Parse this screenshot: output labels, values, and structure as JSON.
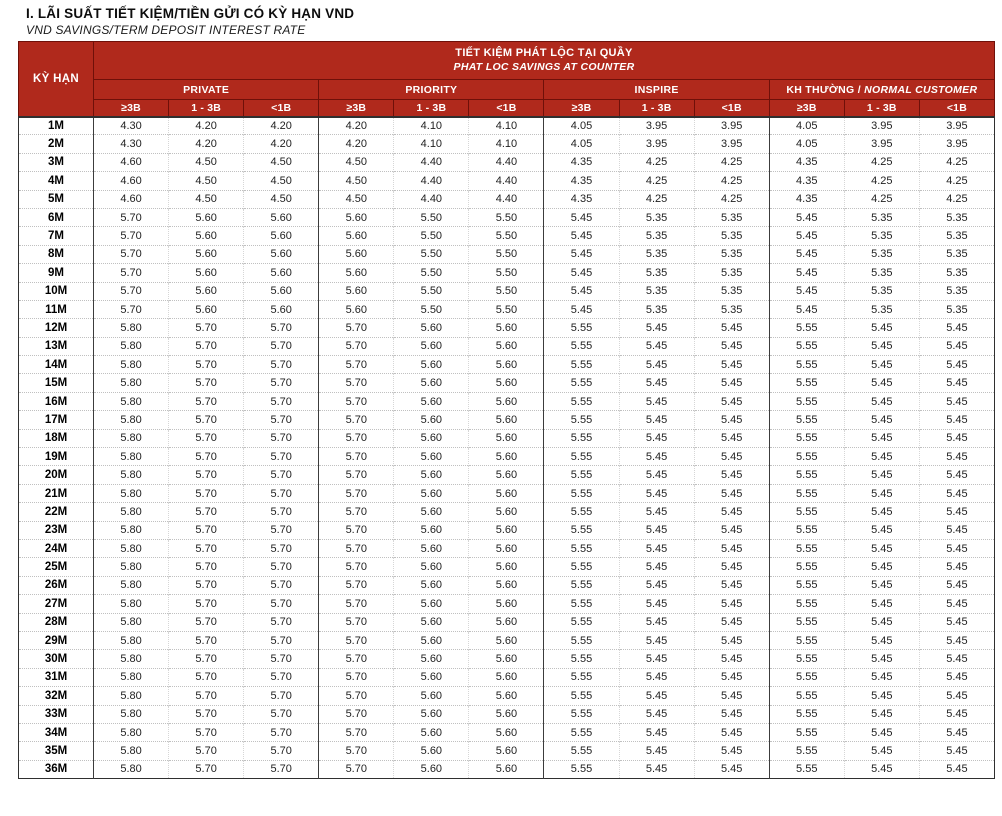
{
  "page": {
    "title": "I. LÃI SUẤT TIẾT KIỆM/TIỀN GỬI CÓ KỲ HẠN VND",
    "subtitle": "VND SAVINGS/TERM DEPOSIT INTEREST RATE"
  },
  "colors": {
    "header_red": "#B0291C",
    "header_divider": "#6F1009",
    "outer_border": "#2F2F2F"
  },
  "table": {
    "term_header": "KỲ HẠN",
    "main_header": {
      "line1": "TIẾT KIỆM PHÁT LỘC TẠI QUẦY",
      "line2": "PHAT LOC SAVINGS AT COUNTER"
    },
    "groups": [
      {
        "label": "PRIVATE",
        "italic_label": ""
      },
      {
        "label": "PRIORITY",
        "italic_label": ""
      },
      {
        "label": "INSPIRE",
        "italic_label": ""
      },
      {
        "label": "KH THƯỜNG /",
        "italic_label": "NORMAL CUSTOMER"
      }
    ],
    "tiers": [
      "≥3B",
      "1 - 3B",
      "<1B"
    ],
    "rows": [
      {
        "term": "1M",
        "values": [
          "4.30",
          "4.20",
          "4.20",
          "4.20",
          "4.10",
          "4.10",
          "4.05",
          "3.95",
          "3.95",
          "4.05",
          "3.95",
          "3.95"
        ]
      },
      {
        "term": "2M",
        "values": [
          "4.30",
          "4.20",
          "4.20",
          "4.20",
          "4.10",
          "4.10",
          "4.05",
          "3.95",
          "3.95",
          "4.05",
          "3.95",
          "3.95"
        ]
      },
      {
        "term": "3M",
        "values": [
          "4.60",
          "4.50",
          "4.50",
          "4.50",
          "4.40",
          "4.40",
          "4.35",
          "4.25",
          "4.25",
          "4.35",
          "4.25",
          "4.25"
        ]
      },
      {
        "term": "4M",
        "values": [
          "4.60",
          "4.50",
          "4.50",
          "4.50",
          "4.40",
          "4.40",
          "4.35",
          "4.25",
          "4.25",
          "4.35",
          "4.25",
          "4.25"
        ]
      },
      {
        "term": "5M",
        "values": [
          "4.60",
          "4.50",
          "4.50",
          "4.50",
          "4.40",
          "4.40",
          "4.35",
          "4.25",
          "4.25",
          "4.35",
          "4.25",
          "4.25"
        ]
      },
      {
        "term": "6M",
        "values": [
          "5.70",
          "5.60",
          "5.60",
          "5.60",
          "5.50",
          "5.50",
          "5.45",
          "5.35",
          "5.35",
          "5.45",
          "5.35",
          "5.35"
        ]
      },
      {
        "term": "7M",
        "values": [
          "5.70",
          "5.60",
          "5.60",
          "5.60",
          "5.50",
          "5.50",
          "5.45",
          "5.35",
          "5.35",
          "5.45",
          "5.35",
          "5.35"
        ]
      },
      {
        "term": "8M",
        "values": [
          "5.70",
          "5.60",
          "5.60",
          "5.60",
          "5.50",
          "5.50",
          "5.45",
          "5.35",
          "5.35",
          "5.45",
          "5.35",
          "5.35"
        ]
      },
      {
        "term": "9M",
        "values": [
          "5.70",
          "5.60",
          "5.60",
          "5.60",
          "5.50",
          "5.50",
          "5.45",
          "5.35",
          "5.35",
          "5.45",
          "5.35",
          "5.35"
        ]
      },
      {
        "term": "10M",
        "values": [
          "5.70",
          "5.60",
          "5.60",
          "5.60",
          "5.50",
          "5.50",
          "5.45",
          "5.35",
          "5.35",
          "5.45",
          "5.35",
          "5.35"
        ]
      },
      {
        "term": "11M",
        "values": [
          "5.70",
          "5.60",
          "5.60",
          "5.60",
          "5.50",
          "5.50",
          "5.45",
          "5.35",
          "5.35",
          "5.45",
          "5.35",
          "5.35"
        ]
      },
      {
        "term": "12M",
        "values": [
          "5.80",
          "5.70",
          "5.70",
          "5.70",
          "5.60",
          "5.60",
          "5.55",
          "5.45",
          "5.45",
          "5.55",
          "5.45",
          "5.45"
        ]
      },
      {
        "term": "13M",
        "values": [
          "5.80",
          "5.70",
          "5.70",
          "5.70",
          "5.60",
          "5.60",
          "5.55",
          "5.45",
          "5.45",
          "5.55",
          "5.45",
          "5.45"
        ]
      },
      {
        "term": "14M",
        "values": [
          "5.80",
          "5.70",
          "5.70",
          "5.70",
          "5.60",
          "5.60",
          "5.55",
          "5.45",
          "5.45",
          "5.55",
          "5.45",
          "5.45"
        ]
      },
      {
        "term": "15M",
        "values": [
          "5.80",
          "5.70",
          "5.70",
          "5.70",
          "5.60",
          "5.60",
          "5.55",
          "5.45",
          "5.45",
          "5.55",
          "5.45",
          "5.45"
        ]
      },
      {
        "term": "16M",
        "values": [
          "5.80",
          "5.70",
          "5.70",
          "5.70",
          "5.60",
          "5.60",
          "5.55",
          "5.45",
          "5.45",
          "5.55",
          "5.45",
          "5.45"
        ]
      },
      {
        "term": "17M",
        "values": [
          "5.80",
          "5.70",
          "5.70",
          "5.70",
          "5.60",
          "5.60",
          "5.55",
          "5.45",
          "5.45",
          "5.55",
          "5.45",
          "5.45"
        ]
      },
      {
        "term": "18M",
        "values": [
          "5.80",
          "5.70",
          "5.70",
          "5.70",
          "5.60",
          "5.60",
          "5.55",
          "5.45",
          "5.45",
          "5.55",
          "5.45",
          "5.45"
        ]
      },
      {
        "term": "19M",
        "values": [
          "5.80",
          "5.70",
          "5.70",
          "5.70",
          "5.60",
          "5.60",
          "5.55",
          "5.45",
          "5.45",
          "5.55",
          "5.45",
          "5.45"
        ]
      },
      {
        "term": "20M",
        "values": [
          "5.80",
          "5.70",
          "5.70",
          "5.70",
          "5.60",
          "5.60",
          "5.55",
          "5.45",
          "5.45",
          "5.55",
          "5.45",
          "5.45"
        ]
      },
      {
        "term": "21M",
        "values": [
          "5.80",
          "5.70",
          "5.70",
          "5.70",
          "5.60",
          "5.60",
          "5.55",
          "5.45",
          "5.45",
          "5.55",
          "5.45",
          "5.45"
        ]
      },
      {
        "term": "22M",
        "values": [
          "5.80",
          "5.70",
          "5.70",
          "5.70",
          "5.60",
          "5.60",
          "5.55",
          "5.45",
          "5.45",
          "5.55",
          "5.45",
          "5.45"
        ]
      },
      {
        "term": "23M",
        "values": [
          "5.80",
          "5.70",
          "5.70",
          "5.70",
          "5.60",
          "5.60",
          "5.55",
          "5.45",
          "5.45",
          "5.55",
          "5.45",
          "5.45"
        ]
      },
      {
        "term": "24M",
        "values": [
          "5.80",
          "5.70",
          "5.70",
          "5.70",
          "5.60",
          "5.60",
          "5.55",
          "5.45",
          "5.45",
          "5.55",
          "5.45",
          "5.45"
        ]
      },
      {
        "term": "25M",
        "values": [
          "5.80",
          "5.70",
          "5.70",
          "5.70",
          "5.60",
          "5.60",
          "5.55",
          "5.45",
          "5.45",
          "5.55",
          "5.45",
          "5.45"
        ]
      },
      {
        "term": "26M",
        "values": [
          "5.80",
          "5.70",
          "5.70",
          "5.70",
          "5.60",
          "5.60",
          "5.55",
          "5.45",
          "5.45",
          "5.55",
          "5.45",
          "5.45"
        ]
      },
      {
        "term": "27M",
        "values": [
          "5.80",
          "5.70",
          "5.70",
          "5.70",
          "5.60",
          "5.60",
          "5.55",
          "5.45",
          "5.45",
          "5.55",
          "5.45",
          "5.45"
        ]
      },
      {
        "term": "28M",
        "values": [
          "5.80",
          "5.70",
          "5.70",
          "5.70",
          "5.60",
          "5.60",
          "5.55",
          "5.45",
          "5.45",
          "5.55",
          "5.45",
          "5.45"
        ]
      },
      {
        "term": "29M",
        "values": [
          "5.80",
          "5.70",
          "5.70",
          "5.70",
          "5.60",
          "5.60",
          "5.55",
          "5.45",
          "5.45",
          "5.55",
          "5.45",
          "5.45"
        ]
      },
      {
        "term": "30M",
        "values": [
          "5.80",
          "5.70",
          "5.70",
          "5.70",
          "5.60",
          "5.60",
          "5.55",
          "5.45",
          "5.45",
          "5.55",
          "5.45",
          "5.45"
        ]
      },
      {
        "term": "31M",
        "values": [
          "5.80",
          "5.70",
          "5.70",
          "5.70",
          "5.60",
          "5.60",
          "5.55",
          "5.45",
          "5.45",
          "5.55",
          "5.45",
          "5.45"
        ]
      },
      {
        "term": "32M",
        "values": [
          "5.80",
          "5.70",
          "5.70",
          "5.70",
          "5.60",
          "5.60",
          "5.55",
          "5.45",
          "5.45",
          "5.55",
          "5.45",
          "5.45"
        ]
      },
      {
        "term": "33M",
        "values": [
          "5.80",
          "5.70",
          "5.70",
          "5.70",
          "5.60",
          "5.60",
          "5.55",
          "5.45",
          "5.45",
          "5.55",
          "5.45",
          "5.45"
        ]
      },
      {
        "term": "34M",
        "values": [
          "5.80",
          "5.70",
          "5.70",
          "5.70",
          "5.60",
          "5.60",
          "5.55",
          "5.45",
          "5.45",
          "5.55",
          "5.45",
          "5.45"
        ]
      },
      {
        "term": "35M",
        "values": [
          "5.80",
          "5.70",
          "5.70",
          "5.70",
          "5.60",
          "5.60",
          "5.55",
          "5.45",
          "5.45",
          "5.55",
          "5.45",
          "5.45"
        ]
      },
      {
        "term": "36M",
        "values": [
          "5.80",
          "5.70",
          "5.70",
          "5.70",
          "5.60",
          "5.60",
          "5.55",
          "5.45",
          "5.45",
          "5.55",
          "5.45",
          "5.45"
        ]
      }
    ]
  }
}
